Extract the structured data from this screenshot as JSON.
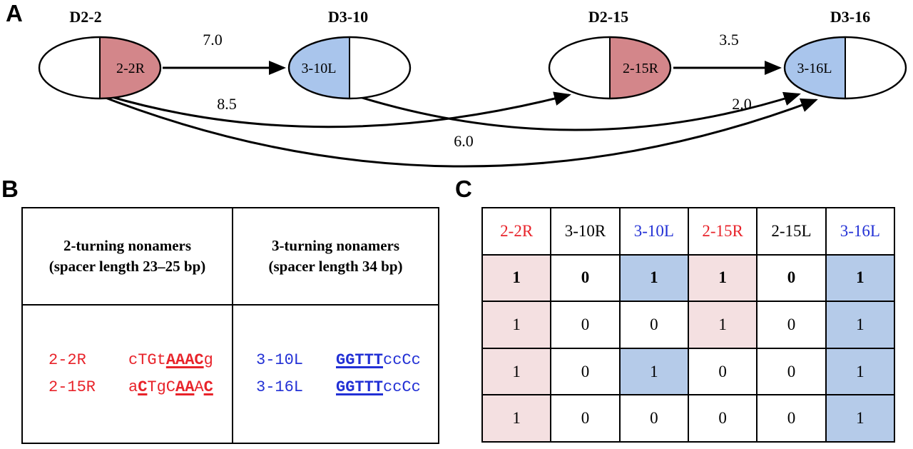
{
  "colors": {
    "red-text": "#e8232a",
    "blue-text": "#2230d5",
    "pink-fill": "#d3868a",
    "blue-fill": "#a9c5ec",
    "pink-cell": "#f4e0e1",
    "blue-cell": "#b5cbe9"
  },
  "panelA": {
    "label": "A",
    "nodes": [
      {
        "name": "D2-2",
        "half_label": "2-2R"
      },
      {
        "name": "D3-10",
        "half_label": "3-10L"
      },
      {
        "name": "D2-15",
        "half_label": "2-15R"
      },
      {
        "name": "D3-16",
        "half_label": "3-16L"
      }
    ],
    "edge_labels": {
      "d22_d310": "7.0",
      "d215_d316": "3.5",
      "d22_d215": "8.5",
      "d310_d316": "2.0",
      "d22_d316": "6.0"
    }
  },
  "panelB": {
    "label": "B",
    "columns": [
      {
        "color": "red",
        "header_line1": "2-turning nonamers",
        "header_line2": "(spacer length 23–25 bp)",
        "rows": [
          {
            "name": "2-2R",
            "seq": [
              {
                "t": "cTGt"
              },
              {
                "t": "AAAC",
                "b": true,
                "u": true
              },
              {
                "t": "g"
              }
            ]
          },
          {
            "name": "2-15R",
            "seq": [
              {
                "t": "a"
              },
              {
                "t": "C",
                "b": true,
                "u": true
              },
              {
                "t": "TgC"
              },
              {
                "t": "AA",
                "b": true,
                "u": true
              },
              {
                "t": "A"
              },
              {
                "t": "C",
                "b": true,
                "u": true
              }
            ]
          }
        ]
      },
      {
        "color": "blue",
        "header_line1": "3-turning nonamers",
        "header_line2": "(spacer length 34 bp)",
        "rows": [
          {
            "name": "3-10L",
            "seq": [
              {
                "t": "GGTTT",
                "b": true,
                "u": true
              },
              {
                "t": "ccCc"
              }
            ]
          },
          {
            "name": "3-16L",
            "seq": [
              {
                "t": "GGTTT",
                "b": true,
                "u": true
              },
              {
                "t": "ccCc"
              }
            ]
          }
        ]
      }
    ]
  },
  "panelC": {
    "label": "C",
    "headers": [
      {
        "t": "2-2R",
        "color": "red"
      },
      {
        "t": "3-10R",
        "color": "black"
      },
      {
        "t": "3-10L",
        "color": "blue"
      },
      {
        "t": "2-15R",
        "color": "red"
      },
      {
        "t": "2-15L",
        "color": "black"
      },
      {
        "t": "3-16L",
        "color": "blue"
      }
    ],
    "rows": [
      {
        "bold": true,
        "cells": [
          {
            "v": "1",
            "bg": "pink"
          },
          {
            "v": "0",
            "bg": "none"
          },
          {
            "v": "1",
            "bg": "blue"
          },
          {
            "v": "1",
            "bg": "pink"
          },
          {
            "v": "0",
            "bg": "none"
          },
          {
            "v": "1",
            "bg": "blue"
          }
        ]
      },
      {
        "cells": [
          {
            "v": "1",
            "bg": "pink"
          },
          {
            "v": "0",
            "bg": "none"
          },
          {
            "v": "0",
            "bg": "none"
          },
          {
            "v": "1",
            "bg": "pink"
          },
          {
            "v": "0",
            "bg": "none"
          },
          {
            "v": "1",
            "bg": "blue"
          }
        ]
      },
      {
        "cells": [
          {
            "v": "1",
            "bg": "pink"
          },
          {
            "v": "0",
            "bg": "none"
          },
          {
            "v": "1",
            "bg": "blue"
          },
          {
            "v": "0",
            "bg": "none"
          },
          {
            "v": "0",
            "bg": "none"
          },
          {
            "v": "1",
            "bg": "blue"
          }
        ]
      },
      {
        "cells": [
          {
            "v": "1",
            "bg": "pink"
          },
          {
            "v": "0",
            "bg": "none"
          },
          {
            "v": "0",
            "bg": "none"
          },
          {
            "v": "0",
            "bg": "none"
          },
          {
            "v": "0",
            "bg": "none"
          },
          {
            "v": "1",
            "bg": "blue"
          }
        ]
      }
    ]
  }
}
